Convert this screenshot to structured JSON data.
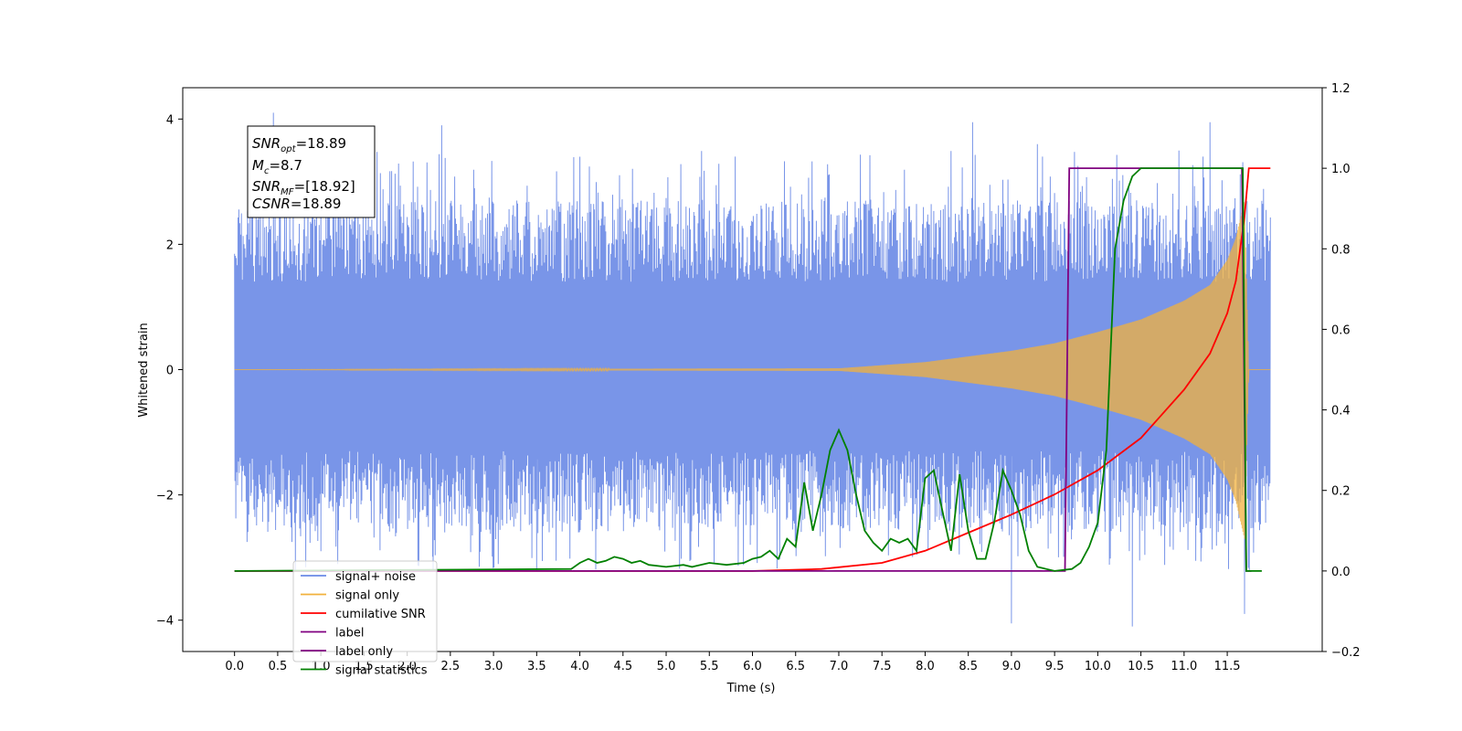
{
  "chart_data": {
    "type": "line",
    "xlabel": "Time (s)",
    "ylabel": "Whitened strain",
    "xlim": [
      -0.6,
      12.6
    ],
    "ylim_left": [
      -4.5,
      4.5
    ],
    "ylim_right": [
      -0.2,
      1.2
    ],
    "x_ticks": [
      "0.0",
      "0.5",
      "1.0",
      "1.5",
      "2.0",
      "2.5",
      "3.0",
      "3.5",
      "4.0",
      "4.5",
      "5.0",
      "5.5",
      "6.0",
      "6.5",
      "7.0",
      "7.5",
      "8.0",
      "8.5",
      "9.0",
      "9.5",
      "10.0",
      "10.5",
      "11.0",
      "11.5"
    ],
    "y_ticks_left": [
      "4",
      "2",
      "0",
      "−2",
      "−4"
    ],
    "y_ticks_right": [
      "1.2",
      "1.0",
      "0.8",
      "0.6",
      "0.4",
      "0.2",
      "0.0",
      "−0.2"
    ],
    "annotation": {
      "snr_opt": {
        "sym": "SNR",
        "sub": "opt",
        "val": "=18.89"
      },
      "mc": {
        "sym": "M",
        "sub": "c",
        "val": "=8.7"
      },
      "snr_mf": {
        "sym": "SNR",
        "sub": "MF",
        "val": "=[18.92]"
      },
      "csnr": {
        "sym": "CSNR",
        "val": "=18.89"
      }
    },
    "legend": {
      "placement": "lower-left",
      "entries": [
        {
          "label": "signal+ noise",
          "color": "#6a8ae6"
        },
        {
          "label": "signal only",
          "color": "#f2b13d"
        },
        {
          "label": "cumilative SNR",
          "color": "#ff0000"
        },
        {
          "label": "label",
          "color": "#800080"
        },
        {
          "label": "label only",
          "color": "#800080"
        },
        {
          "label": "signal statistics",
          "color": "#008000"
        }
      ]
    },
    "series": [
      {
        "name": "signal+ noise",
        "axis": "left",
        "color": "#6a8ae6",
        "description": "dense noise, approx. uniform envelope from -2.5 to 2.5 with spikes to ~4",
        "x_range": [
          0.0,
          12.0
        ],
        "envelope": [
          -2.6,
          2.7
        ],
        "spikes": [
          [
            0.45,
            4.1
          ],
          [
            2.4,
            3.9
          ],
          [
            8.55,
            3.95
          ],
          [
            11.3,
            3.95
          ],
          [
            9.0,
            -4.05
          ],
          [
            10.4,
            -4.1
          ],
          [
            11.7,
            -3.9
          ],
          [
            1.0,
            -2.9
          ],
          [
            2.3,
            -3.2
          ],
          [
            3.5,
            -3.2
          ],
          [
            5.8,
            3.4
          ],
          [
            9.3,
            3.6
          ]
        ]
      },
      {
        "name": "signal only",
        "axis": "left",
        "color": "#f2b13d",
        "description": "chirp; amplitude grows from ~0 at 7.0 s to ~2.7 at 11.7 s, then drops",
        "envelope_x": [
          0.0,
          7.0,
          8.0,
          9.0,
          9.5,
          10.0,
          10.5,
          11.0,
          11.3,
          11.5,
          11.6,
          11.7,
          11.75,
          12.0
        ],
        "envelope_y": [
          0.0,
          0.02,
          0.12,
          0.3,
          0.42,
          0.6,
          0.8,
          1.1,
          1.35,
          1.75,
          2.1,
          2.7,
          0.0,
          0.0
        ]
      },
      {
        "name": "cumilative SNR",
        "axis": "right",
        "color": "#ff0000",
        "x": [
          0.0,
          6.0,
          6.8,
          7.5,
          8.0,
          8.5,
          9.0,
          9.5,
          10.0,
          10.5,
          11.0,
          11.3,
          11.5,
          11.6,
          11.7,
          11.75,
          12.0
        ],
        "y": [
          0.0,
          0.0,
          0.005,
          0.02,
          0.05,
          0.095,
          0.14,
          0.19,
          0.25,
          0.33,
          0.45,
          0.54,
          0.64,
          0.72,
          0.88,
          1.0,
          1.0
        ]
      },
      {
        "name": "label",
        "axis": "right",
        "color": "#800080",
        "x": [
          0.0,
          9.62,
          9.67,
          11.67,
          11.72,
          11.78
        ],
        "y": [
          0.0,
          0.0,
          1.0,
          1.0,
          0.0,
          0.0
        ]
      },
      {
        "name": "signal statistics",
        "axis": "right",
        "color": "#008000",
        "x": [
          0.0,
          3.9,
          4.0,
          4.1,
          4.2,
          4.3,
          4.4,
          4.5,
          4.6,
          4.7,
          4.8,
          5.0,
          5.2,
          5.3,
          5.5,
          5.7,
          5.9,
          6.0,
          6.1,
          6.2,
          6.3,
          6.4,
          6.5,
          6.6,
          6.7,
          6.8,
          6.9,
          7.0,
          7.1,
          7.2,
          7.3,
          7.4,
          7.5,
          7.6,
          7.7,
          7.8,
          7.9,
          8.0,
          8.1,
          8.2,
          8.3,
          8.4,
          8.5,
          8.6,
          8.7,
          8.8,
          8.9,
          9.0,
          9.1,
          9.2,
          9.3,
          9.5,
          9.7,
          9.8,
          9.9,
          10.0,
          10.1,
          10.2,
          10.3,
          10.4,
          10.5,
          10.6,
          10.8,
          11.0,
          11.5,
          11.68,
          11.72,
          11.78,
          11.9
        ],
        "y": [
          0.0,
          0.005,
          0.02,
          0.03,
          0.02,
          0.025,
          0.035,
          0.03,
          0.02,
          0.025,
          0.015,
          0.01,
          0.015,
          0.01,
          0.02,
          0.015,
          0.02,
          0.03,
          0.035,
          0.05,
          0.03,
          0.08,
          0.06,
          0.22,
          0.1,
          0.19,
          0.3,
          0.35,
          0.3,
          0.19,
          0.1,
          0.07,
          0.05,
          0.08,
          0.07,
          0.08,
          0.05,
          0.23,
          0.25,
          0.15,
          0.05,
          0.24,
          0.1,
          0.03,
          0.03,
          0.12,
          0.25,
          0.2,
          0.14,
          0.05,
          0.01,
          0.0,
          0.005,
          0.02,
          0.06,
          0.12,
          0.3,
          0.8,
          0.92,
          0.98,
          1.0,
          1.0,
          1.0,
          1.0,
          1.0,
          1.0,
          0.0,
          0.0,
          0.0
        ]
      }
    ]
  }
}
